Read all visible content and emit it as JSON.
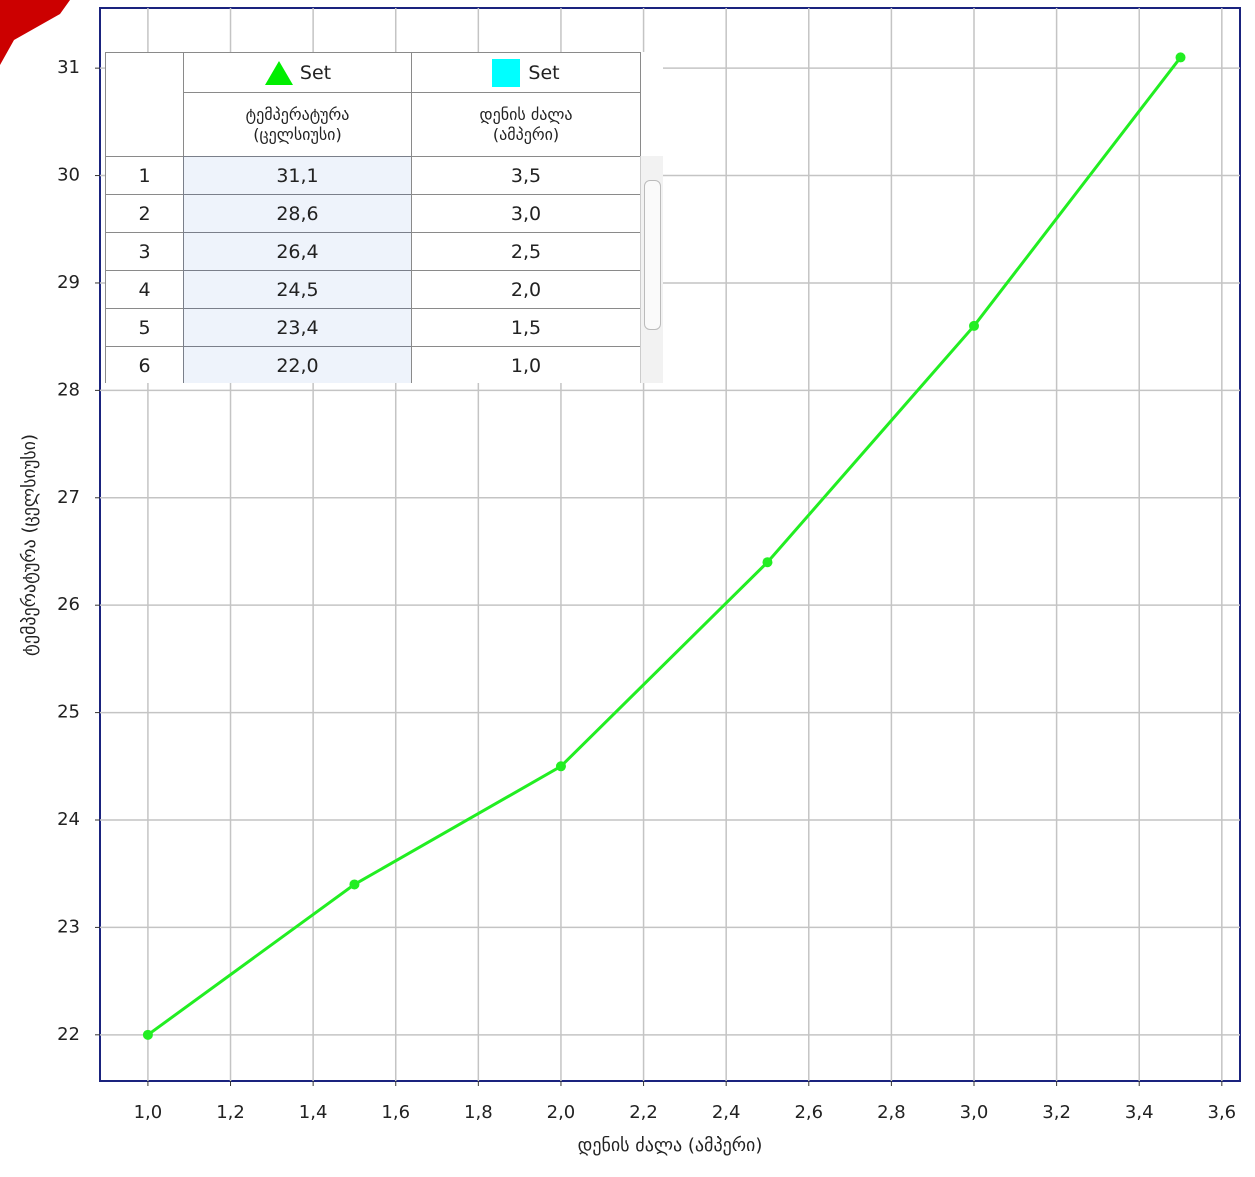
{
  "chart_data": {
    "type": "line",
    "x_label": "დენის ძალა (ამპერი)",
    "y_label": "ტემპერატურა (ცელსიუსი)",
    "x": [
      3.5,
      3.0,
      2.5,
      2.0,
      1.5,
      1.0
    ],
    "values": [
      31.1,
      28.6,
      26.4,
      24.5,
      23.4,
      22.0
    ],
    "color": "#22ee22",
    "xlim": [
      0.884,
      3.644
    ],
    "ylim": [
      21.57,
      31.56
    ],
    "xticks": [
      {
        "value": 1.0,
        "label": "1,0"
      },
      {
        "value": 1.2,
        "label": "1,2"
      },
      {
        "value": 1.4,
        "label": "1,4"
      },
      {
        "value": 1.6,
        "label": "1,6"
      },
      {
        "value": 1.8,
        "label": "1,8"
      },
      {
        "value": 2.0,
        "label": "2,0"
      },
      {
        "value": 2.2,
        "label": "2,2"
      },
      {
        "value": 2.4,
        "label": "2,4"
      },
      {
        "value": 2.6,
        "label": "2,6"
      },
      {
        "value": 2.8,
        "label": "2,8"
      },
      {
        "value": 3.0,
        "label": "3,0"
      },
      {
        "value": 3.2,
        "label": "3,2"
      },
      {
        "value": 3.4,
        "label": "3,4"
      },
      {
        "value": 3.6,
        "label": "3,6"
      }
    ],
    "yticks": [
      22,
      23,
      24,
      25,
      26,
      27,
      28,
      29,
      30,
      31
    ],
    "grid": true
  },
  "table": {
    "legend": [
      "Set",
      "Set"
    ],
    "columns": [
      [
        "ტემპერატურა",
        "(ცელსიუსი)"
      ],
      [
        "დენის ძალა",
        "(ამპერი)"
      ]
    ],
    "rows": [
      [
        "1",
        "31,1",
        "3,5"
      ],
      [
        "2",
        "28,6",
        "3,0"
      ],
      [
        "3",
        "26,4",
        "2,5"
      ],
      [
        "4",
        "24,5",
        "2,0"
      ],
      [
        "5",
        "23,4",
        "1,5"
      ],
      [
        "6",
        "22,0",
        "1,0"
      ]
    ]
  }
}
